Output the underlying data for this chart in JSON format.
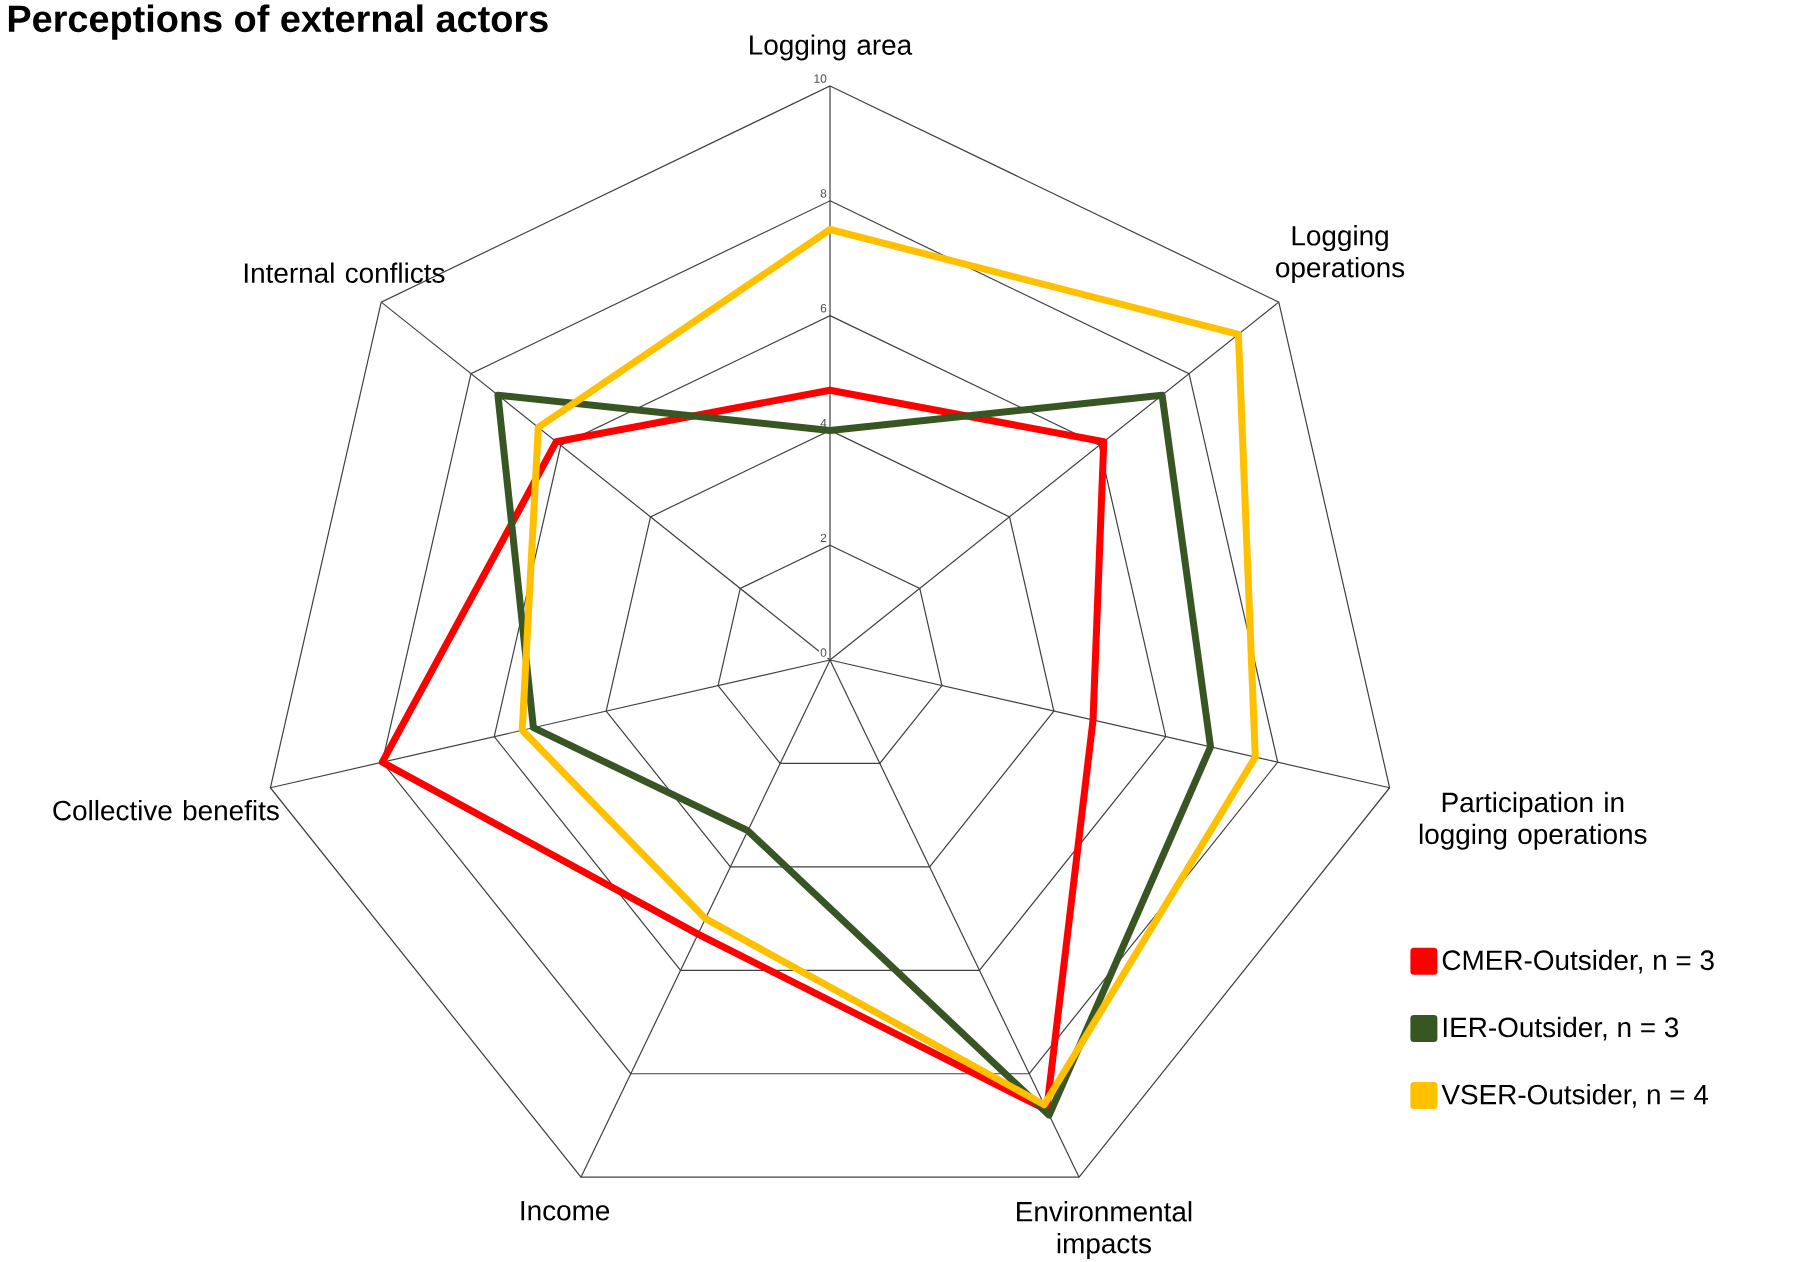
{
  "chart_data": {
    "type": "radar",
    "title": "Perceptions of external actors",
    "categories": [
      "Logging area",
      "Logging operations",
      "Participation in logging operations",
      "Environmental impacts",
      "Income",
      "Collective benefits",
      "Internal conflicts"
    ],
    "series": [
      {
        "name": "CMER-Outsider, n = 3",
        "color": "#ff0000",
        "values": [
          4.7,
          6.1,
          4.7,
          8.7,
          5.3,
          8.0,
          6.1
        ]
      },
      {
        "name": "IER-Outsider, n = 3",
        "color": "#375623",
        "values": [
          4.0,
          7.4,
          6.8,
          8.8,
          3.3,
          5.3,
          7.4
        ]
      },
      {
        "name": "VSER-Outsider, n = 4",
        "color": "#ffc000",
        "values": [
          7.5,
          9.1,
          7.6,
          8.6,
          5.0,
          5.5,
          6.5
        ]
      }
    ],
    "ylim": [
      0,
      10
    ],
    "yticks": [
      0,
      2,
      4,
      6,
      8,
      10
    ],
    "grid": true,
    "legend": "bottom right",
    "line_style": "solid",
    "marker": "none"
  }
}
